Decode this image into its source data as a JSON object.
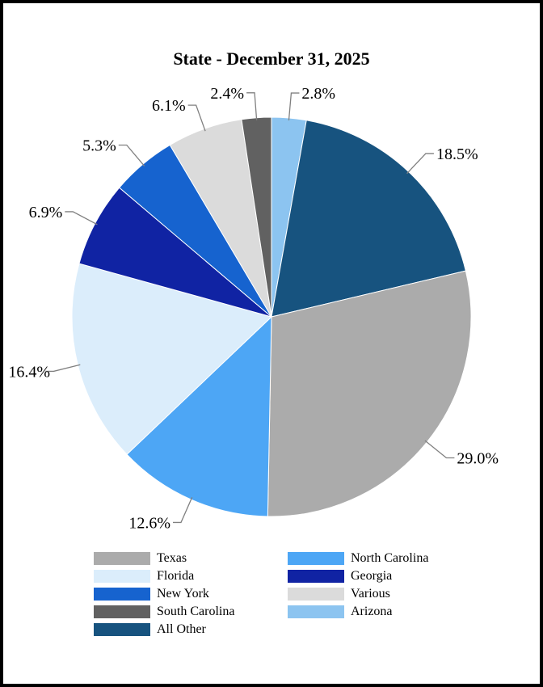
{
  "page": {
    "background_color": "#ffffff",
    "frame_border_color": "#000000"
  },
  "chart_data": {
    "type": "pie",
    "title": "State - December 31, 2025",
    "direction": "clockwise",
    "start_angle_deg": 0,
    "label_color": "#000000",
    "leader_line_color": "#808080",
    "legend_position": "bottom",
    "slices": [
      {
        "label": "Arizona",
        "value": 2.8,
        "display": "2.8%",
        "color": "#8CC4F0"
      },
      {
        "label": "All Other",
        "value": 18.5,
        "display": "18.5%",
        "color": "#17537F"
      },
      {
        "label": "Texas",
        "value": 29.0,
        "display": "29.0%",
        "color": "#ABABAB"
      },
      {
        "label": "North Carolina",
        "value": 12.6,
        "display": "12.6%",
        "color": "#4DA6F5"
      },
      {
        "label": "Florida",
        "value": 16.4,
        "display": "16.4%",
        "color": "#DBEDFB"
      },
      {
        "label": "Georgia",
        "value": 6.9,
        "display": "6.9%",
        "color": "#1023A3"
      },
      {
        "label": "New York",
        "value": 5.3,
        "display": "5.3%",
        "color": "#1663CF"
      },
      {
        "label": "Various",
        "value": 6.1,
        "display": "6.1%",
        "color": "#DBDBDB"
      },
      {
        "label": "South Carolina",
        "value": 2.4,
        "display": "2.4%",
        "color": "#616161"
      }
    ],
    "legend": {
      "columns": [
        [
          "Texas",
          "Florida",
          "New York",
          "South Carolina",
          "All Other"
        ],
        [
          "North Carolina",
          "Georgia",
          "Various",
          "Arizona"
        ]
      ]
    }
  }
}
